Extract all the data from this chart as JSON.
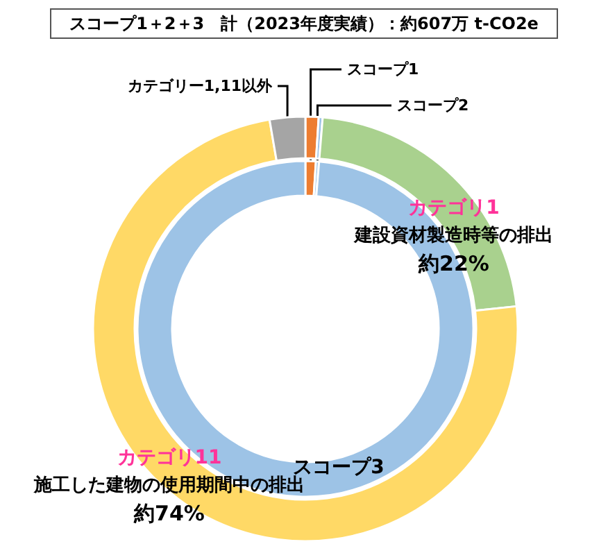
{
  "chart_data": [
    {
      "type": "donut",
      "title": "スコープ1＋2＋3　計（2023年度実績）：約607万 t-CO2e",
      "categories": [
        "スコープ1",
        "スコープ2",
        "スコープ3"
      ],
      "colors": [
        "#ed7d31",
        "#9dc3e6",
        "#9dc3e6"
      ],
      "values": [
        1,
        0.3,
        98.7
      ],
      "legend": false
    },
    {
      "type": "donut",
      "categories": [
        null,
        null,
        "カテゴリ1",
        "カテゴリ11",
        "カテゴリー1,11以外"
      ],
      "colors": [
        "#ed7d31",
        "#9dc3e6",
        "#a9d18e",
        "#ffd966",
        "#a5a5a5"
      ],
      "values": [
        1,
        0.3,
        22,
        74,
        2.7
      ],
      "value_labels": [
        null,
        null,
        "約22%",
        "約74%",
        null
      ],
      "annotations": [
        "建設資材製造時等の排出",
        "施工した建物の使用期間中の排出"
      ],
      "legend": false
    }
  ]
}
